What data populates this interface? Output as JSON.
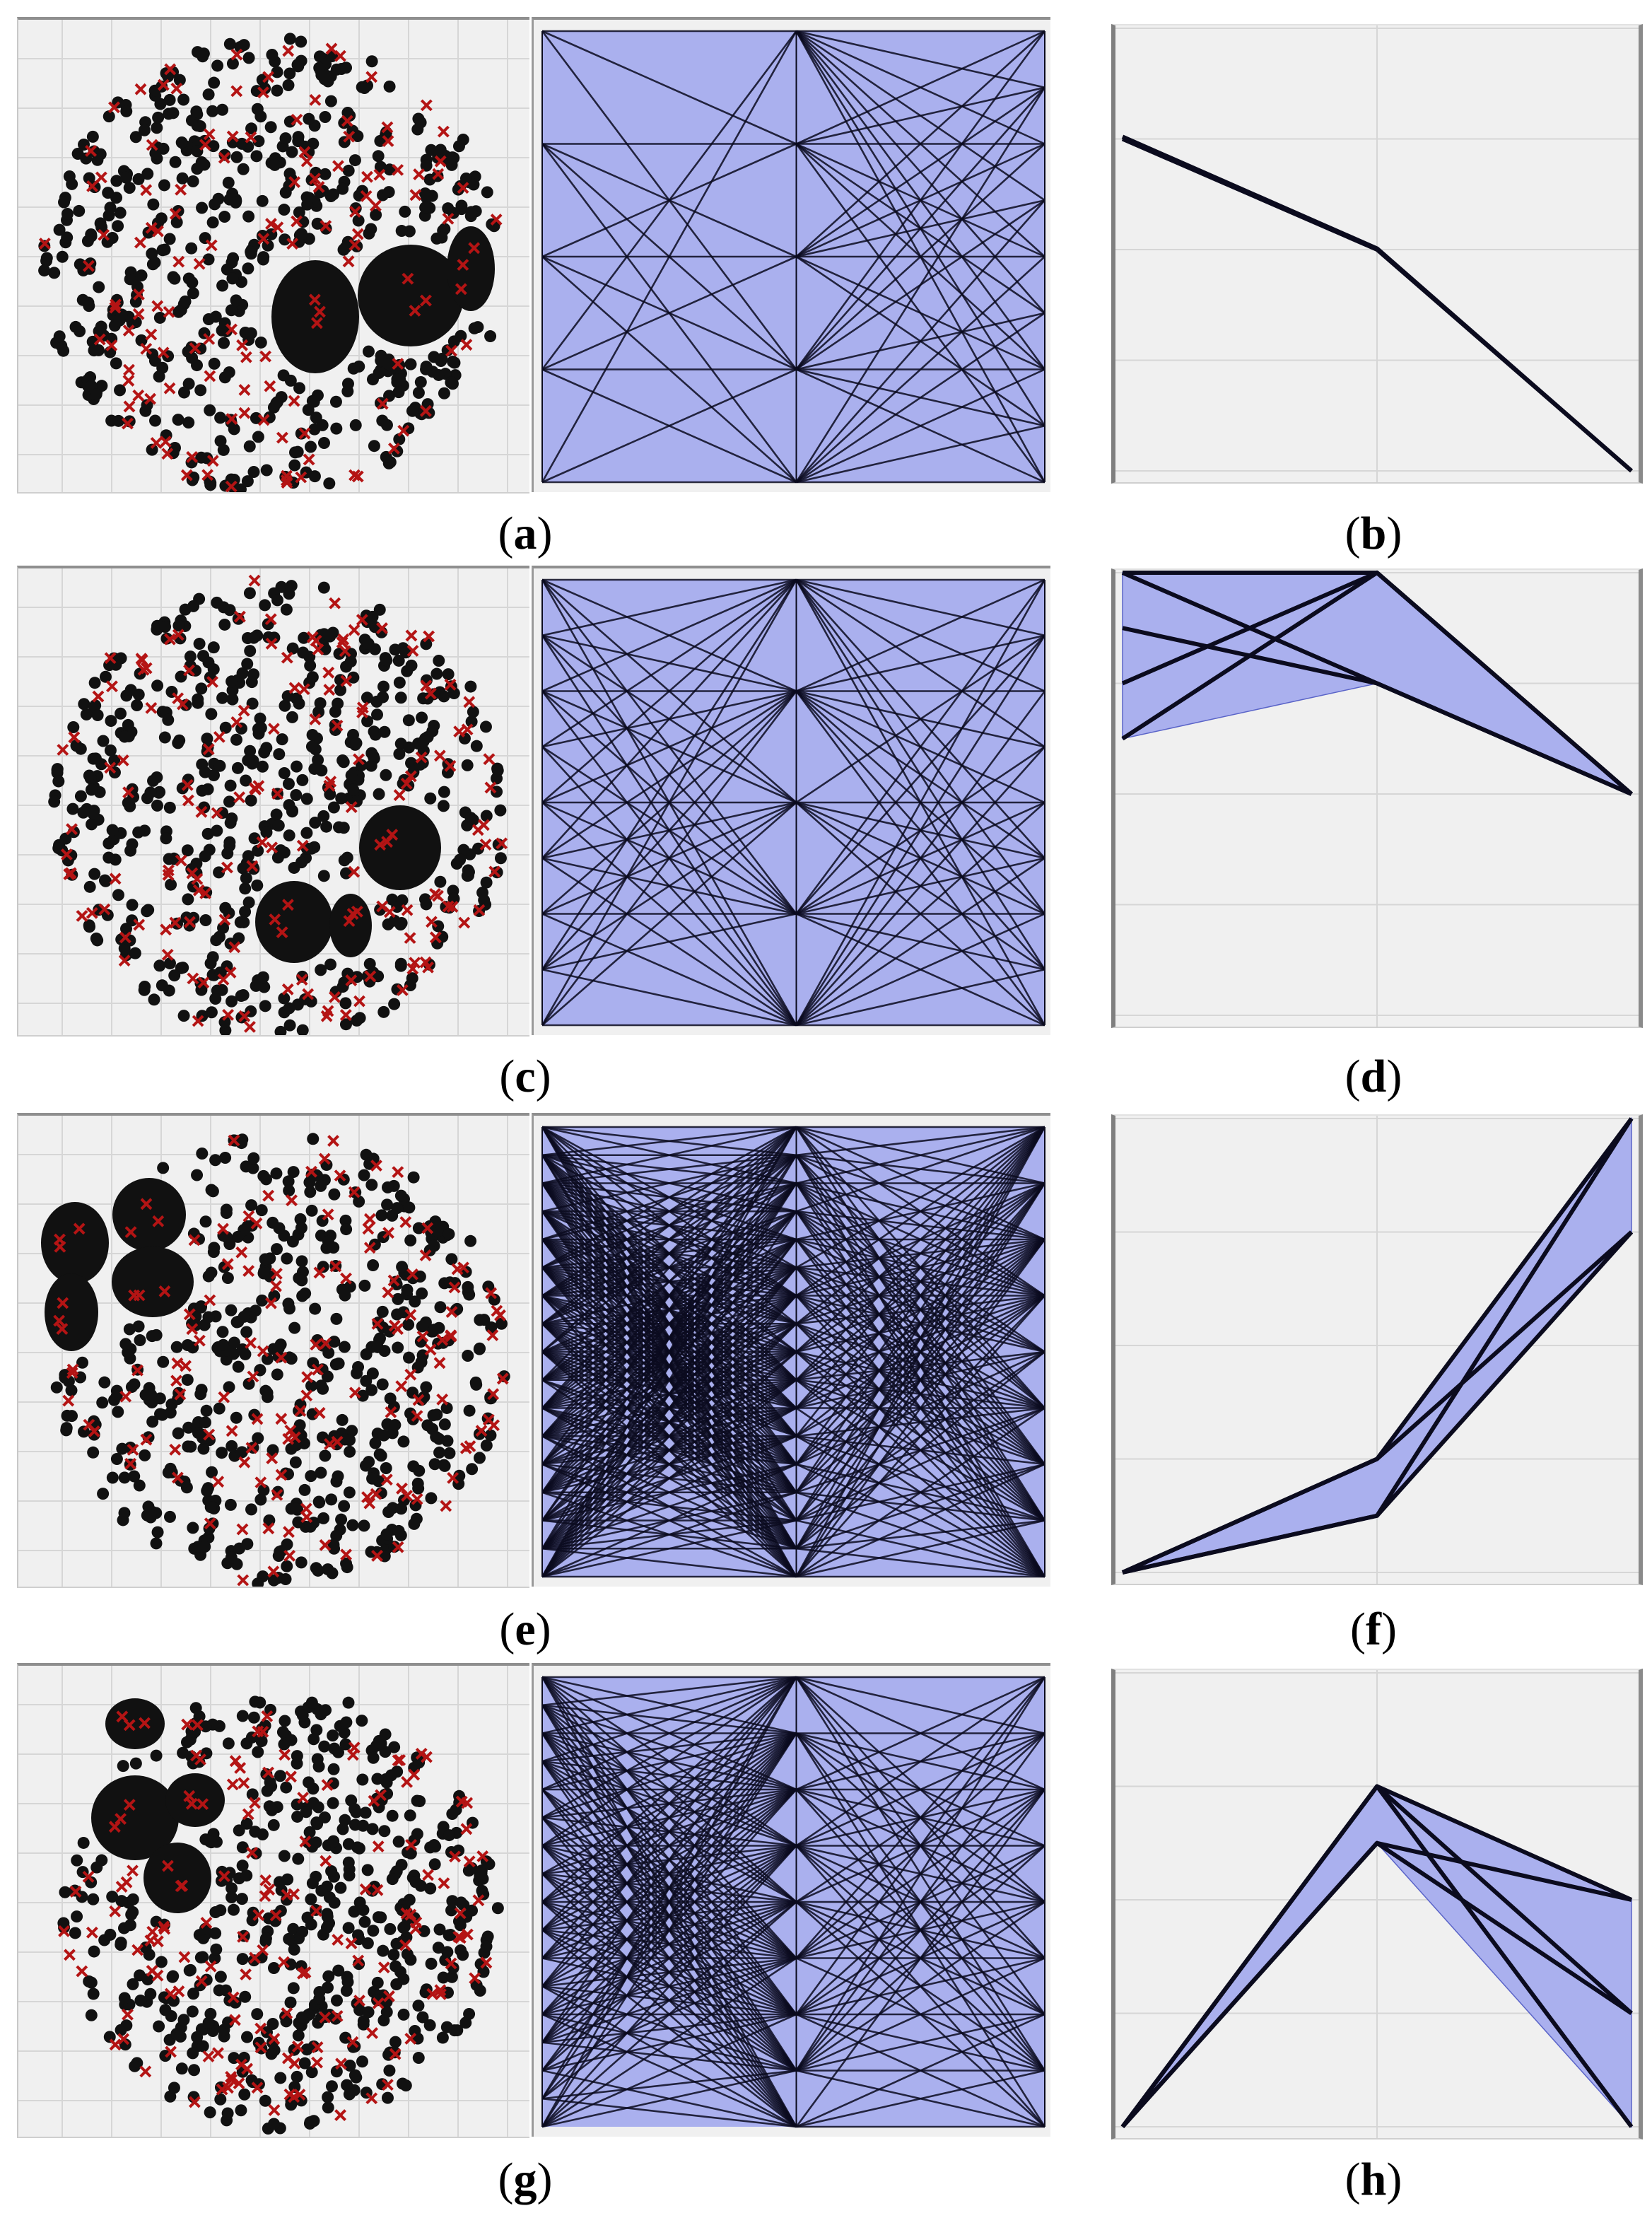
{
  "captions": [
    "a",
    "b",
    "c",
    "d",
    "e",
    "f",
    "g",
    "h"
  ],
  "colors": {
    "panel_bg": "#f0f0f0",
    "grid": "#d6d6d6",
    "dot": "#111111",
    "cross": "#b41414",
    "band_fill": "#aab0ee",
    "line": "#0b0b1e"
  },
  "chart_data": [
    {
      "row": "a",
      "type": "scatter",
      "description_series": [
        "points",
        "selected"
      ],
      "dense_clusters": 3,
      "blob_side": "right",
      "grid": true
    },
    {
      "row": "a",
      "type": "line",
      "kind": "parallel-coordinates",
      "axes": 3,
      "axis_levels": [
        [
          0,
          1,
          2,
          3,
          4
        ],
        [
          0,
          1,
          2,
          3,
          4
        ],
        [
          0,
          1,
          2,
          3,
          4,
          5,
          6,
          7,
          8
        ]
      ],
      "grid": false
    },
    {
      "row": "b",
      "type": "line",
      "kind": "parallel-coordinates-selection",
      "axes": 3,
      "ylim": [
        0,
        4
      ],
      "lines": [
        [
          3.0,
          2.0,
          0.0
        ],
        [
          3.02,
          2.01,
          0.0
        ]
      ],
      "band": null
    },
    {
      "row": "c",
      "type": "scatter",
      "dense_clusters": 4,
      "blob_side": "bottom-right",
      "grid": true
    },
    {
      "row": "c",
      "type": "line",
      "kind": "parallel-coordinates",
      "axes": 3,
      "axis_levels": [
        [
          0,
          1,
          2,
          3,
          4,
          5,
          6,
          7,
          8
        ],
        [
          0,
          1,
          2,
          3,
          4
        ],
        [
          0,
          1,
          2,
          3,
          4,
          5,
          6,
          7,
          8
        ]
      ],
      "grid": false
    },
    {
      "row": "d",
      "type": "line",
      "kind": "parallel-coordinates-selection",
      "axes": 3,
      "ylim": [
        0,
        4
      ],
      "lines": [
        [
          4.0,
          3.0,
          2.0
        ],
        [
          3.5,
          3.0,
          2.0
        ],
        [
          3.0,
          4.0,
          2.0
        ],
        [
          2.5,
          4.0,
          2.0
        ],
        [
          4.0,
          4.0,
          2.0
        ]
      ],
      "band": [
        [
          2.5,
          4.0
        ],
        [
          3.0,
          4.0
        ],
        [
          2.0,
          2.0
        ]
      ]
    },
    {
      "row": "e",
      "type": "scatter",
      "dense_clusters": 4,
      "blob_side": "top-left",
      "grid": true
    },
    {
      "row": "e",
      "type": "line",
      "kind": "parallel-coordinates",
      "axes": 3,
      "axis_levels": [
        [
          0,
          1,
          2,
          3,
          4,
          5,
          6,
          7,
          8,
          9,
          10,
          11,
          12,
          13,
          14,
          15,
          16
        ],
        [
          0,
          1,
          2,
          3,
          4,
          5,
          6,
          7,
          8,
          9,
          10,
          11,
          12,
          13,
          14,
          15,
          16
        ],
        [
          0,
          1,
          2,
          3,
          4,
          5,
          6,
          7,
          8
        ]
      ],
      "grid": false
    },
    {
      "row": "f",
      "type": "line",
      "kind": "parallel-coordinates-selection",
      "axes": 3,
      "ylim": [
        0,
        4
      ],
      "lines": [
        [
          0.0,
          0.5,
          3.0
        ],
        [
          0.0,
          1.0,
          4.0
        ],
        [
          0.0,
          0.5,
          4.0
        ],
        [
          0.0,
          1.0,
          3.0
        ]
      ],
      "band": [
        [
          0.0,
          0.0
        ],
        [
          0.5,
          1.0
        ],
        [
          3.0,
          4.0
        ]
      ]
    },
    {
      "row": "g",
      "type": "scatter",
      "dense_clusters": 4,
      "blob_side": "left",
      "grid": true
    },
    {
      "row": "g",
      "type": "line",
      "kind": "parallel-coordinates",
      "axes": 3,
      "axis_levels": [
        [
          0,
          1,
          2,
          3,
          4,
          5,
          6,
          7,
          8,
          9,
          10,
          11,
          12,
          13,
          14,
          15,
          16
        ],
        [
          0,
          1,
          2,
          3,
          4,
          5,
          6,
          7,
          8
        ],
        [
          0,
          1,
          2,
          3,
          4,
          5,
          6,
          7,
          8
        ]
      ],
      "grid": false
    },
    {
      "row": "h",
      "type": "line",
      "kind": "parallel-coordinates-selection",
      "axes": 3,
      "ylim": [
        0,
        4
      ],
      "lines": [
        [
          0.0,
          3.0,
          2.0
        ],
        [
          0.0,
          2.5,
          2.0
        ],
        [
          0.0,
          3.0,
          1.0
        ],
        [
          0.0,
          2.5,
          1.0
        ],
        [
          0.0,
          3.0,
          0.0
        ]
      ],
      "band": [
        [
          0.0,
          0.0
        ],
        [
          2.5,
          3.0
        ],
        [
          0.0,
          2.0
        ]
      ]
    }
  ]
}
